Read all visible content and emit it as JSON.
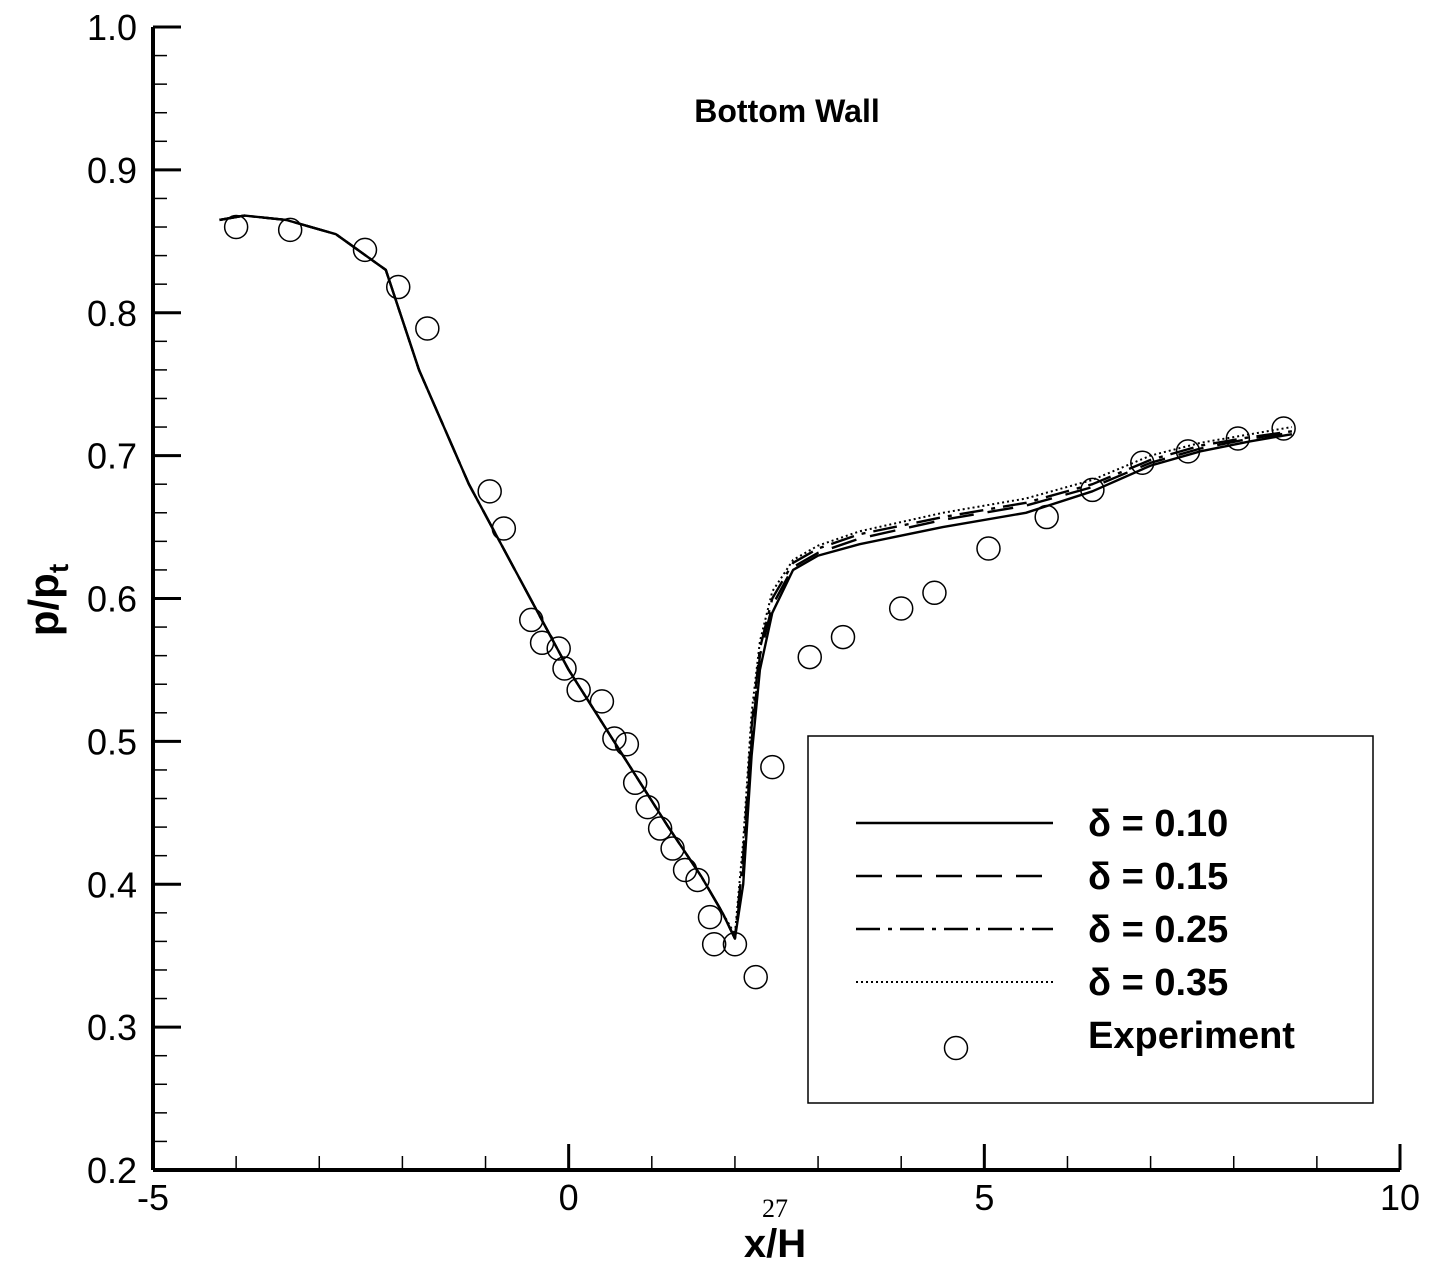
{
  "page_number": "27",
  "chart_data": {
    "type": "line",
    "title": "Bottom Wall",
    "xlabel": "x/H",
    "ylabel": {
      "main": "p/p",
      "subscript": "t"
    },
    "xlim": [
      -5,
      10
    ],
    "ylim": [
      0.2,
      1.0
    ],
    "x_ticks": [
      -5,
      0,
      5,
      10
    ],
    "x_tick_labels": [
      "-5",
      "0",
      "5",
      "10"
    ],
    "y_ticks": [
      0.2,
      0.3,
      0.4,
      0.5,
      0.6,
      0.7,
      0.8,
      0.9,
      1.0
    ],
    "y_tick_labels": [
      "0.2",
      "0.3",
      "0.4",
      "0.5",
      "0.6",
      "0.7",
      "0.8",
      "0.9",
      "1.0"
    ],
    "grid": false,
    "legend_placement": "bottom-right",
    "series": [
      {
        "name": "δ = 0.10",
        "style": "solid",
        "x": [
          -4.2,
          -3.9,
          -3.4,
          -2.8,
          -2.2,
          -1.8,
          -1.2,
          -0.6,
          0.0,
          0.6,
          1.2,
          1.6,
          1.85,
          2.0,
          2.1,
          2.2,
          2.3,
          2.45,
          2.7,
          3.0,
          3.5,
          4.5,
          5.5,
          6.3,
          7.0,
          7.6,
          8.2,
          8.7
        ],
        "values": [
          0.865,
          0.868,
          0.865,
          0.855,
          0.83,
          0.76,
          0.68,
          0.615,
          0.55,
          0.495,
          0.44,
          0.405,
          0.38,
          0.362,
          0.4,
          0.49,
          0.55,
          0.59,
          0.62,
          0.63,
          0.638,
          0.65,
          0.66,
          0.675,
          0.693,
          0.703,
          0.71,
          0.715
        ]
      },
      {
        "name": "δ = 0.15",
        "style": "dashed",
        "x": [
          -4.2,
          -3.9,
          -3.4,
          -2.8,
          -2.2,
          -1.8,
          -1.2,
          -0.6,
          0.0,
          0.6,
          1.2,
          1.6,
          1.85,
          2.0,
          2.1,
          2.2,
          2.3,
          2.45,
          2.7,
          3.0,
          3.5,
          4.5,
          5.5,
          6.3,
          7.0,
          7.6,
          8.2,
          8.7
        ],
        "values": [
          0.865,
          0.868,
          0.865,
          0.855,
          0.83,
          0.76,
          0.68,
          0.615,
          0.55,
          0.495,
          0.44,
          0.405,
          0.38,
          0.362,
          0.41,
          0.5,
          0.56,
          0.595,
          0.622,
          0.632,
          0.642,
          0.655,
          0.665,
          0.678,
          0.695,
          0.705,
          0.712,
          0.716
        ]
      },
      {
        "name": "δ = 0.25",
        "style": "dashdot",
        "x": [
          -4.2,
          -3.9,
          -3.4,
          -2.8,
          -2.2,
          -1.8,
          -1.2,
          -0.6,
          0.0,
          0.6,
          1.2,
          1.6,
          1.85,
          2.0,
          2.1,
          2.2,
          2.3,
          2.45,
          2.7,
          3.0,
          3.5,
          4.5,
          5.5,
          6.3,
          7.0,
          7.6,
          8.2,
          8.7
        ],
        "values": [
          0.865,
          0.868,
          0.865,
          0.855,
          0.83,
          0.76,
          0.68,
          0.615,
          0.55,
          0.495,
          0.44,
          0.405,
          0.38,
          0.362,
          0.42,
          0.51,
          0.565,
          0.6,
          0.625,
          0.635,
          0.645,
          0.657,
          0.667,
          0.68,
          0.697,
          0.707,
          0.713,
          0.717
        ]
      },
      {
        "name": "δ = 0.35",
        "style": "dotted",
        "x": [
          -4.2,
          -3.9,
          -3.4,
          -2.8,
          -2.2,
          -1.8,
          -1.2,
          -0.6,
          0.0,
          0.6,
          1.2,
          1.6,
          1.85,
          2.0,
          2.1,
          2.2,
          2.3,
          2.45,
          2.7,
          3.0,
          3.5,
          4.5,
          5.5,
          6.3,
          7.0,
          7.6,
          8.2,
          8.7
        ],
        "values": [
          0.865,
          0.868,
          0.865,
          0.855,
          0.83,
          0.76,
          0.68,
          0.615,
          0.55,
          0.495,
          0.44,
          0.405,
          0.38,
          0.365,
          0.43,
          0.52,
          0.57,
          0.605,
          0.627,
          0.637,
          0.647,
          0.66,
          0.67,
          0.683,
          0.7,
          0.709,
          0.715,
          0.72
        ]
      },
      {
        "name": "Experiment",
        "style": "markers",
        "x": [
          -4.0,
          -3.35,
          -2.45,
          -2.05,
          -1.7,
          -0.95,
          -0.78,
          -0.45,
          -0.32,
          -0.12,
          -0.05,
          0.12,
          0.4,
          0.55,
          0.7,
          0.8,
          0.95,
          1.1,
          1.25,
          1.4,
          1.55,
          1.7,
          1.75,
          2.0,
          2.25,
          2.45,
          2.9,
          3.3,
          4.0,
          4.4,
          5.05,
          5.75,
          6.3,
          6.9,
          7.45,
          8.05,
          8.6
        ],
        "values": [
          0.86,
          0.858,
          0.844,
          0.818,
          0.789,
          0.675,
          0.649,
          0.585,
          0.569,
          0.565,
          0.551,
          0.536,
          0.528,
          0.502,
          0.498,
          0.471,
          0.454,
          0.439,
          0.425,
          0.41,
          0.403,
          0.377,
          0.358,
          0.358,
          0.335,
          0.482,
          0.559,
          0.573,
          0.593,
          0.604,
          0.635,
          0.657,
          0.676,
          0.695,
          0.703,
          0.712,
          0.719
        ]
      }
    ]
  }
}
